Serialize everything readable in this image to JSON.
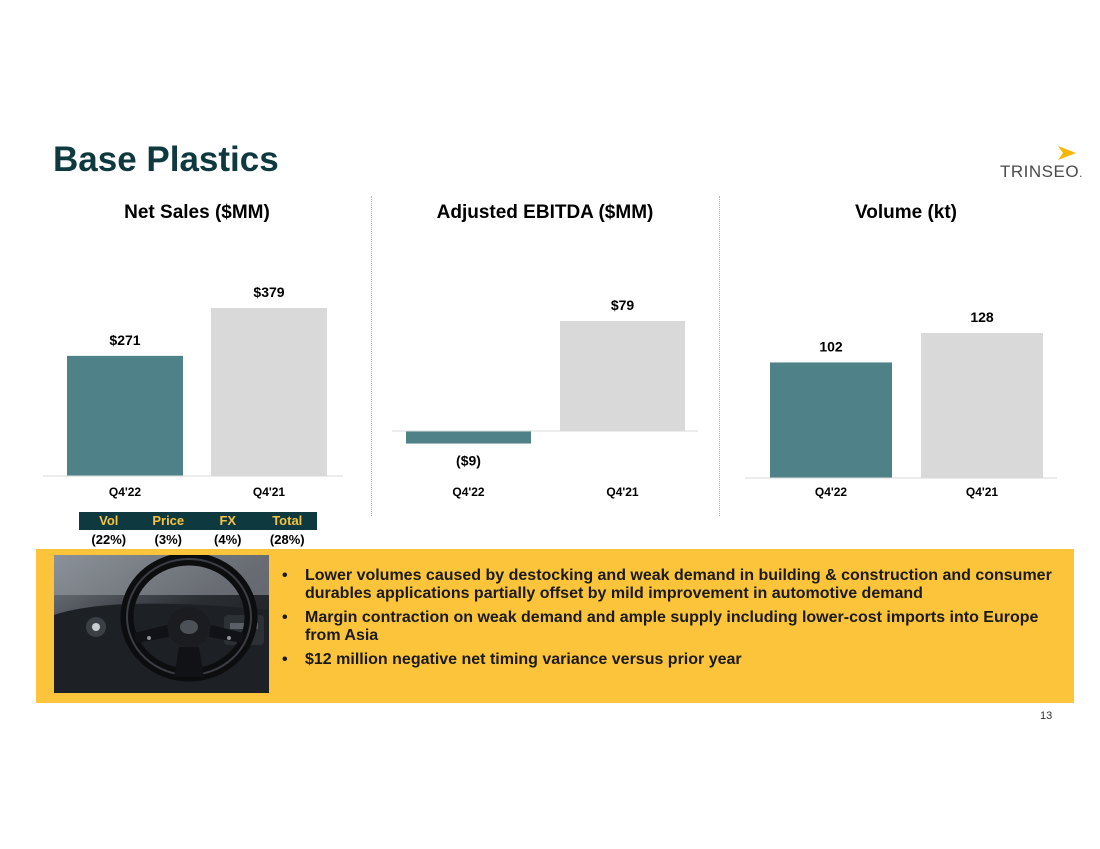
{
  "slide": {
    "title": "Base Plastics",
    "logo_text": "TRINSEO",
    "logo_dot": ".",
    "page_number": "13"
  },
  "colors": {
    "current": "#4e8288",
    "prior": "#d9d9d9",
    "accent": "#fbc43a",
    "dark": "#0e3a3f"
  },
  "chart_data": [
    {
      "type": "bar",
      "title": "Net Sales ($MM)",
      "categories": [
        "Q4'22",
        "Q4'21"
      ],
      "values": [
        271,
        379
      ],
      "labels": [
        "$271",
        "$379"
      ]
    },
    {
      "type": "bar",
      "title": "Adjusted EBITDA ($MM)",
      "categories": [
        "Q4'22",
        "Q4'21"
      ],
      "values": [
        -9,
        79
      ],
      "labels": [
        "($9)",
        "$79"
      ]
    },
    {
      "type": "bar",
      "title": "Volume (kt)",
      "categories": [
        "Q4'22",
        "Q4'21"
      ],
      "values": [
        102,
        128
      ],
      "labels": [
        "102",
        "128"
      ]
    }
  ],
  "sales_bridge": {
    "headers": [
      "Vol",
      "Price",
      "FX",
      "Total"
    ],
    "values": [
      "(22%)",
      "(3%)",
      "(4%)",
      "(28%)"
    ]
  },
  "commentary": {
    "image_icon": "car-steering-wheel-photo",
    "bullet_char": "•",
    "bullets": [
      "Lower volumes caused by destocking and weak demand in building & construction and consumer durables applications partially offset by mild improvement in automotive demand",
      "Margin contraction on weak demand and ample supply including lower-cost imports into Europe from Asia",
      "$12 million negative net timing variance versus prior year"
    ]
  }
}
